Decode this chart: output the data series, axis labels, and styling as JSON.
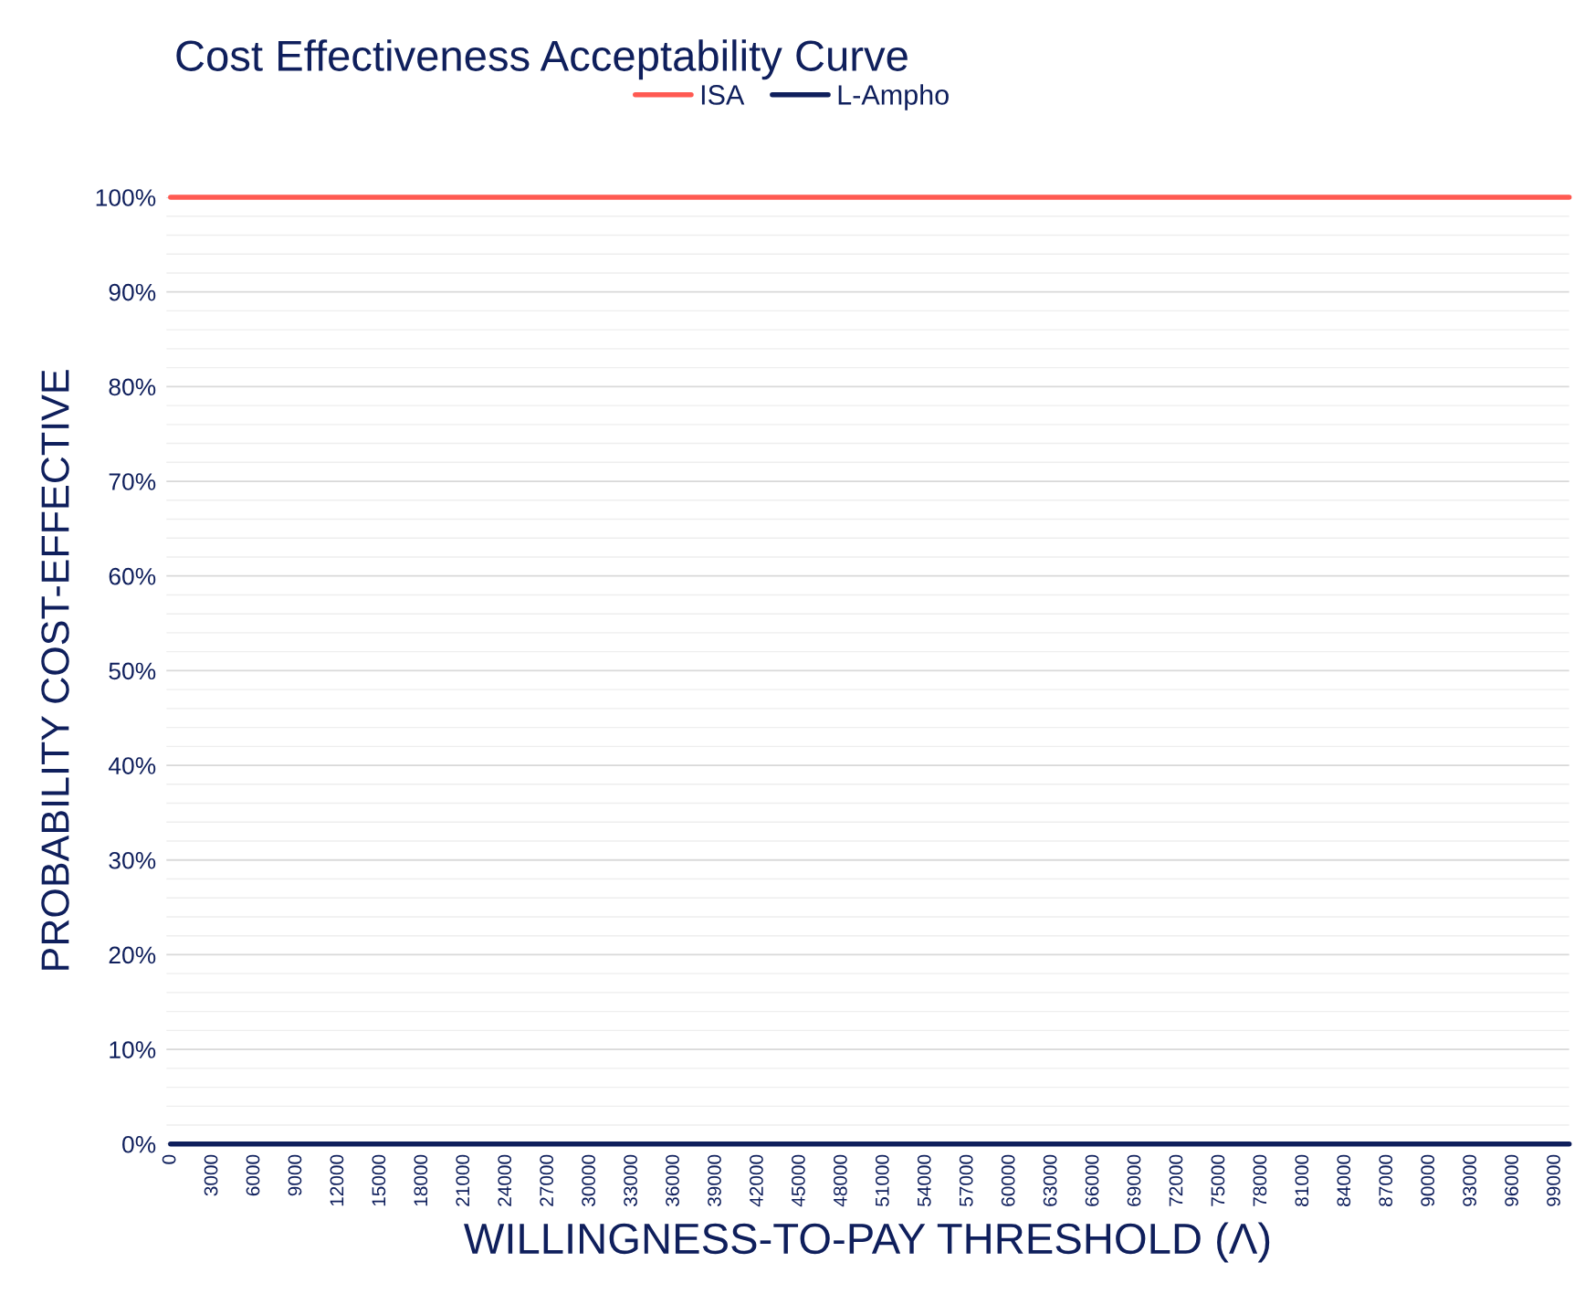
{
  "chart_data": {
    "type": "line",
    "title": "Cost Effectiveness Acceptability Curve",
    "xlabel": "WILLINGNESS-TO-PAY THRESHOLD (Λ)",
    "ylabel": "PROBABILITY COST-EFFECTIVE",
    "categories": [
      "0",
      null,
      null,
      "3000",
      null,
      null,
      "6000",
      null,
      null,
      "9000",
      null,
      null,
      "12000",
      null,
      null,
      "15000",
      null,
      null,
      "18000",
      null,
      null,
      "21000",
      null,
      null,
      "24000",
      null,
      null,
      "27000",
      null,
      null,
      "30000",
      null,
      null,
      "33000",
      null,
      null,
      "36000",
      null,
      null,
      "39000",
      null,
      null,
      "42000",
      null,
      null,
      "45000",
      null,
      null,
      "48000",
      null,
      null,
      "51000",
      null,
      null,
      "54000",
      null,
      null,
      "57000",
      null,
      null,
      "60000",
      null,
      null,
      "63000",
      null,
      null,
      "66000",
      null,
      null,
      "69000",
      null,
      null,
      "72000",
      null,
      null,
      "75000",
      null,
      null,
      "78000",
      null,
      null,
      "81000",
      null,
      null,
      "84000",
      null,
      null,
      "87000",
      null,
      null,
      "90000",
      null,
      null,
      "93000",
      null,
      null,
      "96000",
      null,
      null,
      "99000",
      null
    ],
    "series": [
      {
        "name": "ISA",
        "color": "#ff5a52",
        "values": [
          100,
          100,
          100,
          100,
          100,
          100,
          100,
          100,
          100,
          100,
          100,
          100,
          100,
          100,
          100,
          100,
          100,
          100,
          100,
          100,
          100,
          100,
          100,
          100,
          100,
          100,
          100,
          100,
          100,
          100,
          100,
          100,
          100,
          100,
          100,
          100,
          100,
          100,
          100,
          100,
          100,
          100,
          100,
          100,
          100,
          100,
          100,
          100,
          100,
          100,
          100,
          100,
          100,
          100,
          100,
          100,
          100,
          100,
          100,
          100,
          100,
          100,
          100,
          100,
          100,
          100,
          100,
          100,
          100,
          100,
          100,
          100,
          100,
          100,
          100,
          100,
          100,
          100,
          100,
          100,
          100,
          100,
          100,
          100,
          100,
          100,
          100,
          100,
          100,
          100,
          100,
          100,
          100,
          100,
          100,
          100,
          100,
          100,
          100,
          100,
          100
        ]
      },
      {
        "name": "L-Ampho",
        "color": "#0f1f5c",
        "values": [
          0,
          0,
          0,
          0,
          0,
          0,
          0,
          0,
          0,
          0,
          0,
          0,
          0,
          0,
          0,
          0,
          0,
          0,
          0,
          0,
          0,
          0,
          0,
          0,
          0,
          0,
          0,
          0,
          0,
          0,
          0,
          0,
          0,
          0,
          0,
          0,
          0,
          0,
          0,
          0,
          0,
          0,
          0,
          0,
          0,
          0,
          0,
          0,
          0,
          0,
          0,
          0,
          0,
          0,
          0,
          0,
          0,
          0,
          0,
          0,
          0,
          0,
          0,
          0,
          0,
          0,
          0,
          0,
          0,
          0,
          0,
          0,
          0,
          0,
          0,
          0,
          0,
          0,
          0,
          0,
          0,
          0,
          0,
          0,
          0,
          0,
          0,
          0,
          0,
          0,
          0,
          0,
          0,
          0,
          0,
          0,
          0,
          0,
          0,
          0,
          0
        ]
      }
    ],
    "ylim": [
      0,
      100
    ],
    "yticks": [
      {
        "value": 0,
        "label": "0%"
      },
      {
        "value": 10,
        "label": "10%"
      },
      {
        "value": 20,
        "label": "20%"
      },
      {
        "value": 30,
        "label": "30%"
      },
      {
        "value": 40,
        "label": "40%"
      },
      {
        "value": 50,
        "label": "50%"
      },
      {
        "value": 60,
        "label": "60%"
      },
      {
        "value": 70,
        "label": "70%"
      },
      {
        "value": 80,
        "label": "80%"
      },
      {
        "value": 90,
        "label": "90%"
      },
      {
        "value": 100,
        "label": "100%"
      }
    ],
    "grid": "y",
    "legend": "top",
    "marker": "none",
    "line_style": "solid"
  }
}
